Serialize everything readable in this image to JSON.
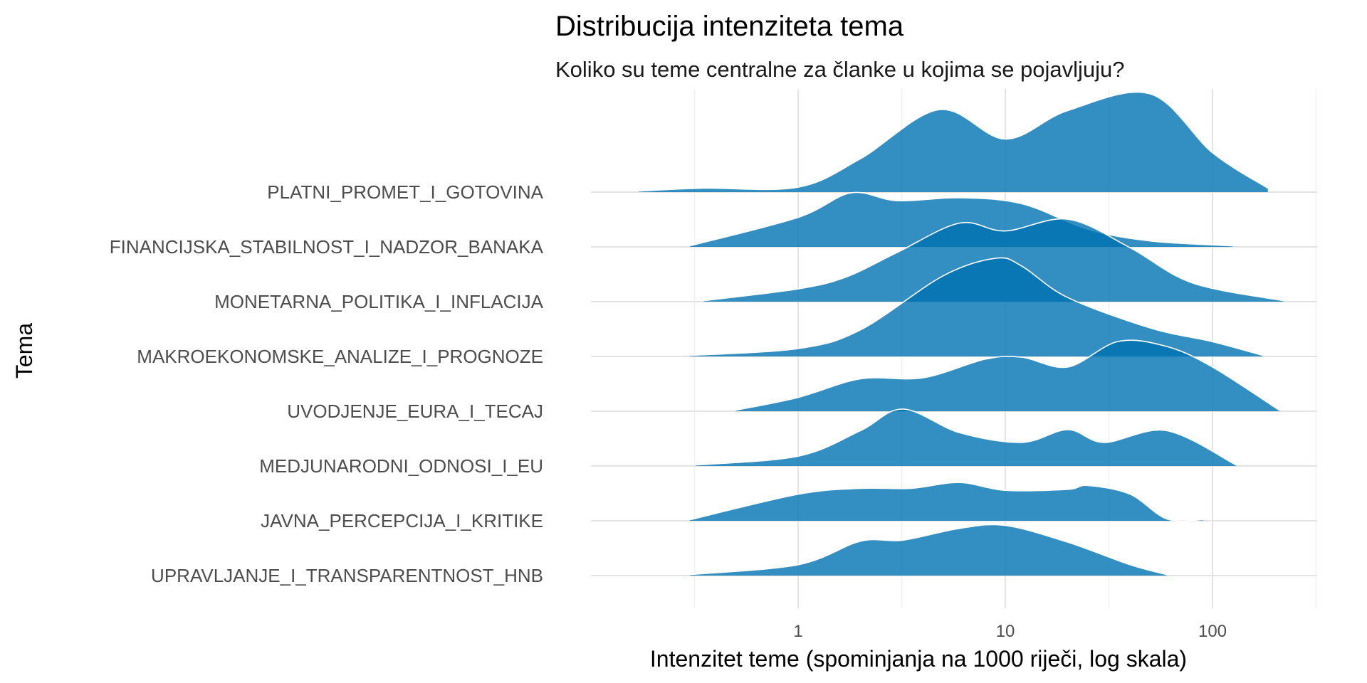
{
  "chart_data": {
    "type": "ridgeline",
    "title": "Distribucija intenziteta tema",
    "subtitle": "Koliko su teme centralne za članke u kojima se pojavljuju?",
    "xlabel": "Intenzitet teme (spominjanja na 1000 riječi, log skala)",
    "ylabel": "Tema",
    "x_scale": "log10",
    "xlim": [
      0.1,
      350
    ],
    "x_ticks": [
      1,
      10,
      100
    ],
    "x_tick_labels": [
      "1",
      "10",
      "100"
    ],
    "x_minor_gridlines": [
      0.316,
      3.16,
      31.6,
      316
    ],
    "fill_color": "#0072b2",
    "fill_opacity": 0.8,
    "outline_color": "#ffffff",
    "categories": [
      "PLATNI_PROMET_I_GOTOVINA",
      "FINANCIJSKA_STABILNOST_I_NADZOR_BANAKA",
      "MONETARNA_POLITIKA_I_INFLACIJA",
      "MAKROEKONOMSKE_ANALIZE_I_PROGNOZE",
      "UVODJENJE_EURA_I_TECAJ",
      "MEDJUNARODNI_ODNOSI_I_EU",
      "JAVNA_PERCEPCIJA_I_KRITIKE",
      "UPRAVLJANJE_I_TRANSPARENTNOST_HNB"
    ],
    "series": [
      {
        "x": [
          0.17,
          0.35,
          1,
          2,
          4.8,
          10,
          20,
          50,
          100,
          185
        ],
        "density": [
          0.01,
          0.04,
          0.05,
          0.34,
          0.84,
          0.54,
          0.83,
          1.0,
          0.4,
          0.04
        ]
      },
      {
        "x": [
          0.3,
          1,
          1.8,
          3,
          6,
          12,
          25,
          50,
          125
        ],
        "density": [
          0.01,
          0.3,
          0.55,
          0.47,
          0.5,
          0.44,
          0.18,
          0.06,
          0.01
        ]
      },
      {
        "x": [
          0.35,
          1,
          1.7,
          3,
          6,
          10,
          20,
          40,
          80,
          220
        ],
        "density": [
          0.01,
          0.13,
          0.25,
          0.5,
          0.8,
          0.72,
          0.84,
          0.55,
          0.19,
          0.01
        ]
      },
      {
        "x": [
          0.3,
          1,
          2,
          5,
          9,
          12,
          20,
          50,
          100,
          175
        ],
        "density": [
          0.01,
          0.08,
          0.27,
          0.82,
          1.0,
          0.92,
          0.6,
          0.29,
          0.15,
          0.01
        ]
      },
      {
        "x": [
          0.5,
          1,
          2,
          4,
          8,
          12,
          20,
          35,
          60,
          100,
          210
        ],
        "density": [
          0.01,
          0.14,
          0.33,
          0.34,
          0.53,
          0.55,
          0.45,
          0.71,
          0.66,
          0.45,
          0.01
        ]
      },
      {
        "x": [
          0.32,
          1,
          2,
          3.2,
          6,
          12,
          20,
          30,
          60,
          130
        ],
        "density": [
          0.01,
          0.1,
          0.36,
          0.58,
          0.34,
          0.24,
          0.37,
          0.24,
          0.36,
          0.01
        ]
      },
      {
        "x": [
          0.3,
          1,
          2,
          3.5,
          6,
          10,
          20,
          25,
          40,
          60,
          90
        ],
        "density": [
          0.01,
          0.27,
          0.33,
          0.33,
          0.39,
          0.31,
          0.32,
          0.36,
          0.27,
          0.02,
          0.01
        ]
      },
      {
        "x": [
          0.3,
          1,
          2,
          3.2,
          6,
          10,
          20,
          40,
          60
        ],
        "density": [
          0.01,
          0.11,
          0.35,
          0.36,
          0.48,
          0.51,
          0.34,
          0.11,
          0.01
        ]
      }
    ]
  }
}
